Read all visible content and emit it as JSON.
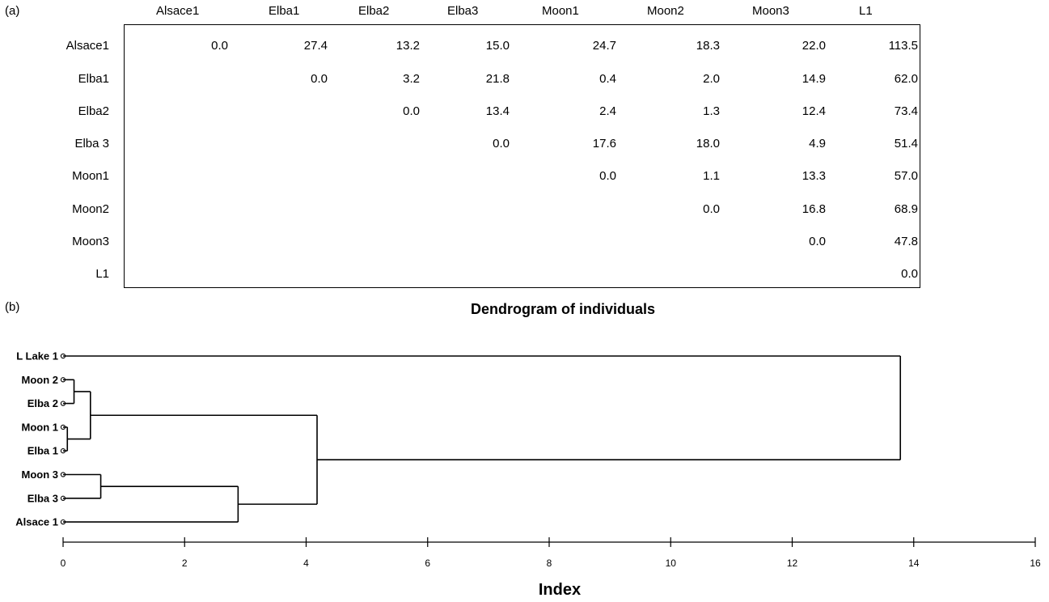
{
  "panel_a_label": "(a)",
  "panel_b_label": "(b)",
  "chart_data": [
    {
      "type": "table",
      "columns": [
        "Alsace1",
        "Elba1",
        "Elba2",
        "Elba3",
        "Moon1",
        "Moon2",
        "Moon3",
        "L1"
      ],
      "rows": [
        {
          "label": "Alsace1",
          "values": [
            "0.0",
            "27.4",
            "13.2",
            "15.0",
            "24.7",
            "18.3",
            "22.0",
            "113.5"
          ]
        },
        {
          "label": "Elba1",
          "values": [
            "",
            "0.0",
            "3.2",
            "21.8",
            "0.4",
            "2.0",
            "14.9",
            "62.0"
          ]
        },
        {
          "label": "Elba2",
          "values": [
            "",
            "",
            "0.0",
            "13.4",
            "2.4",
            "1.3",
            "12.4",
            "73.4"
          ]
        },
        {
          "label": "Elba 3",
          "values": [
            "",
            "",
            "",
            "0.0",
            "17.6",
            "18.0",
            "4.9",
            "51.4"
          ]
        },
        {
          "label": "Moon1",
          "values": [
            "",
            "",
            "",
            "",
            "0.0",
            "1.1",
            "13.3",
            "57.0"
          ]
        },
        {
          "label": "Moon2",
          "values": [
            "",
            "",
            "",
            "",
            "",
            "0.0",
            "16.8",
            "68.9"
          ]
        },
        {
          "label": "Moon3",
          "values": [
            "",
            "",
            "",
            "",
            "",
            "",
            "0.0",
            "47.8"
          ]
        },
        {
          "label": "L1",
          "values": [
            "",
            "",
            "",
            "",
            "",
            "",
            "",
            "0.0"
          ]
        }
      ]
    },
    {
      "type": "dendrogram",
      "title": "Dendrogram of individuals",
      "xlabel": "Index",
      "xlim": [
        0,
        16
      ],
      "xticks": [
        0,
        2,
        4,
        6,
        8,
        10,
        12,
        14,
        16
      ],
      "leaves": [
        "L Lake 1",
        "Moon 2",
        "Elba 2",
        "Moon 1",
        "Elba 1",
        "Moon 3",
        "Elba 3",
        "Alsace 1"
      ],
      "merges": [
        {
          "left": 3,
          "right": 4,
          "height": 0.07
        },
        {
          "left": 1,
          "right": 2,
          "height": 0.18
        },
        {
          "left": 8,
          "right": 9,
          "height": 0.45
        },
        {
          "left": 5,
          "right": 6,
          "height": 0.62
        },
        {
          "left": 11,
          "right": 7,
          "height": 2.88
        },
        {
          "left": 10,
          "right": 12,
          "height": 4.18
        },
        {
          "left": 0,
          "right": 13,
          "height": 13.78
        }
      ]
    }
  ]
}
